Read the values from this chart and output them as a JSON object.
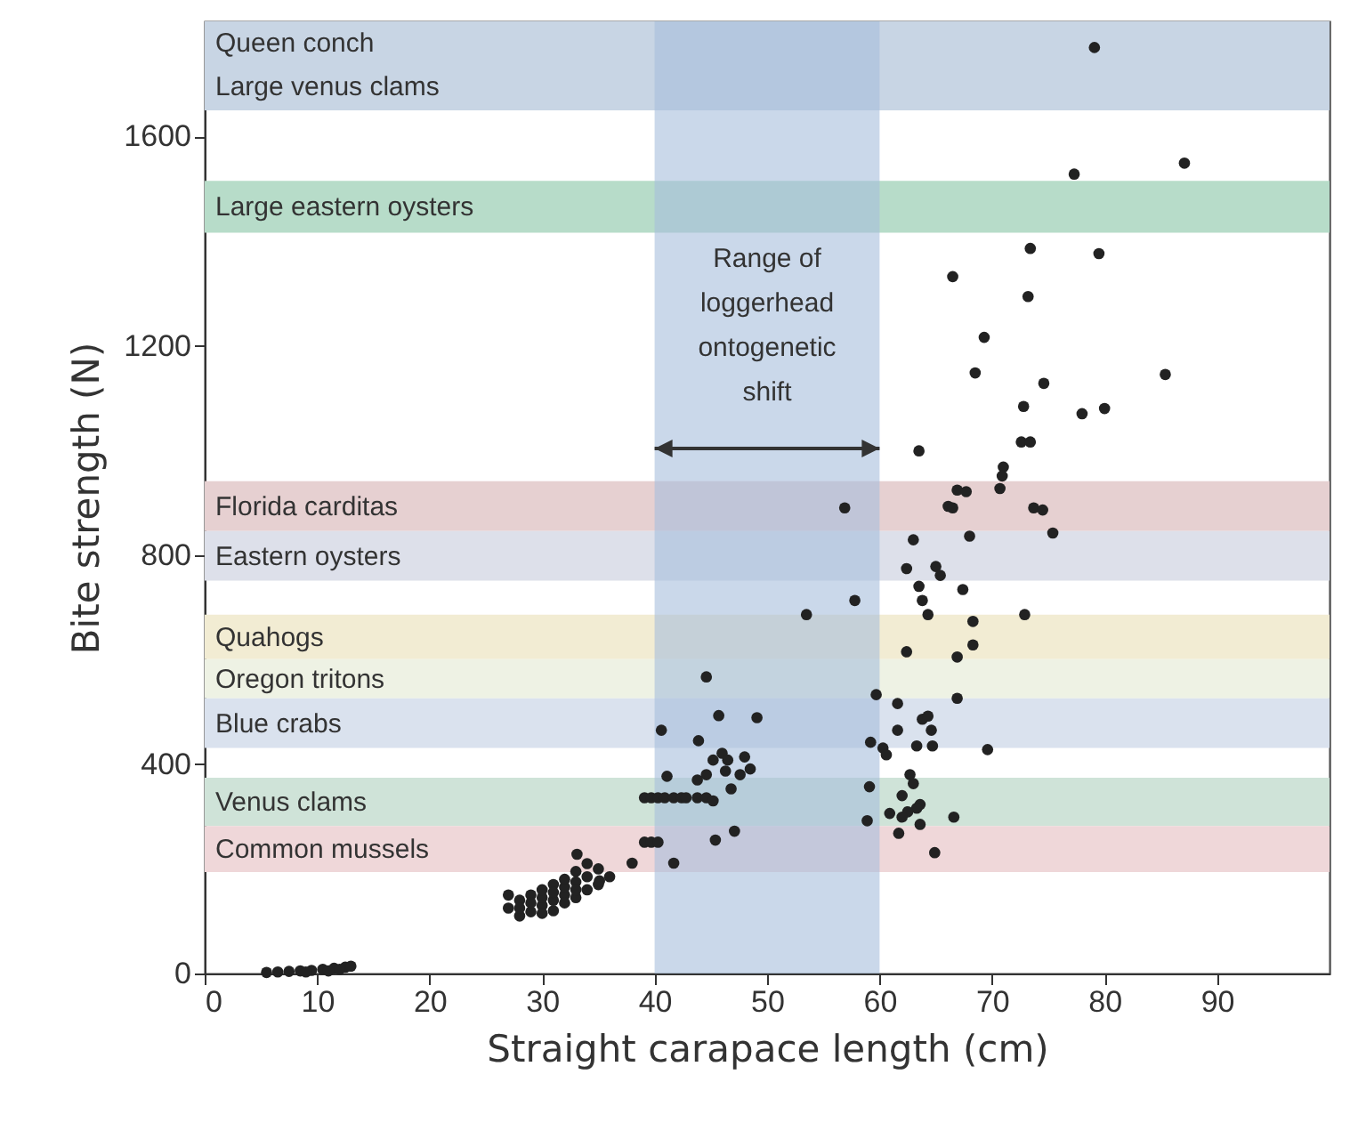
{
  "chart_data": {
    "type": "scatter",
    "xlabel": "Straight carapace length (cm)",
    "ylabel": "Bite strength (N)",
    "xlim": [
      0,
      100
    ],
    "ylim": [
      0,
      1820
    ],
    "xticks": [
      0,
      10,
      20,
      30,
      40,
      50,
      60,
      70,
      80,
      90
    ],
    "yticks": [
      0,
      400,
      800,
      1200,
      1600
    ],
    "grid": false,
    "marker": "circle",
    "bands": [
      {
        "axis": "y",
        "from": 1740,
        "to": 1820,
        "label": "Queen conch",
        "color": "#c8d5e4"
      },
      {
        "axis": "y",
        "from": 1650,
        "to": 1740,
        "label": "Large venus clams",
        "color": "#c8d5e4"
      },
      {
        "axis": "y",
        "from": 1416,
        "to": 1515,
        "label": "Large eastern oysters",
        "color": "#b7dcc9"
      },
      {
        "axis": "y",
        "from": 846,
        "to": 941,
        "label": "Florida carditas",
        "color": "#e6d0d1"
      },
      {
        "axis": "y",
        "from": 751,
        "to": 846,
        "label": "Eastern oysters",
        "color": "#dde0ea"
      },
      {
        "axis": "y",
        "from": 601,
        "to": 686,
        "label": "Quahogs",
        "color": "#f2ecd3"
      },
      {
        "axis": "y",
        "from": 526,
        "to": 601,
        "label": "Oregon tritons",
        "color": "#eef2e4"
      },
      {
        "axis": "y",
        "from": 431,
        "to": 526,
        "label": "Blue crabs",
        "color": "#dae2ee"
      },
      {
        "axis": "y",
        "from": 282,
        "to": 374,
        "label": "Venus clams",
        "color": "#cfe3d8"
      },
      {
        "axis": "y",
        "from": 194,
        "to": 282,
        "label": "Common mussels",
        "color": "#efd7d9"
      },
      {
        "axis": "x",
        "from": 40,
        "to": 60,
        "label": "Range of loggerhead ontogenetic shift",
        "color": "#a7bedc"
      }
    ],
    "series": [
      {
        "color": "#222222",
        "x": [
          79.1,
          87.1,
          77.3,
          73.4,
          79.5,
          66.5,
          73.2,
          69.3,
          68.5,
          85.4,
          74.6,
          72.8,
          78.0,
          80.0,
          63.5,
          72.6,
          73.4,
          71.0,
          70.9,
          70.7,
          66.9,
          67.7,
          56.9,
          66.1,
          66.5,
          73.7,
          74.5,
          75.4,
          63.0,
          68.0,
          62.4,
          65.0,
          65.4,
          63.5,
          67.4,
          57.8,
          63.8,
          64.3,
          68.3,
          72.9,
          68.3,
          62.4,
          66.9,
          59.7,
          61.6,
          66.9,
          63.8,
          64.3,
          61.6,
          64.6,
          59.2,
          60.3,
          60.6,
          63.3,
          64.7,
          69.6,
          62.7,
          63.0,
          59.1,
          62.0,
          63.6,
          63.3,
          62.5,
          62.0,
          60.9,
          66.6,
          58.9,
          63.6,
          61.7,
          64.9,
          53.5,
          44.6,
          45.7,
          49.1,
          40.6,
          43.9,
          46.0,
          46.5,
          48.0,
          48.5,
          45.2,
          46.3,
          47.6,
          44.6,
          43.8,
          46.8,
          41.1,
          39.1,
          39.7,
          40.3,
          40.9,
          41.7,
          42.4,
          42.8,
          43.8,
          44.6,
          45.2,
          39.1,
          39.7,
          40.3,
          45.4,
          47.1,
          38.0,
          41.7,
          28,
          27,
          28,
          29,
          29,
          30,
          30,
          30,
          31,
          31,
          31,
          32,
          32,
          32,
          33,
          33,
          33,
          34,
          34,
          34,
          35,
          35,
          36,
          27,
          29,
          31,
          33,
          32,
          30,
          28,
          33.1,
          35.1,
          5.5,
          6.5,
          7.5,
          8.5,
          9.5,
          10.5,
          11.5,
          12.5,
          13,
          9,
          11,
          12
        ],
        "values": [
          1770,
          1549,
          1528,
          1386,
          1376,
          1332,
          1294,
          1216,
          1148,
          1145,
          1128,
          1084,
          1070,
          1080,
          999,
          1016,
          1016,
          968,
          951,
          927,
          924,
          921,
          890,
          893,
          890,
          890,
          886,
          842,
          829,
          836,
          774,
          778,
          761,
          740,
          734,
          713,
          713,
          686,
          673,
          686,
          628,
          615,
          605,
          533,
          516,
          526,
          486,
          492,
          465,
          465,
          442,
          431,
          418,
          435,
          435,
          428,
          380,
          363,
          357,
          340,
          323,
          316,
          309,
          299,
          306,
          299,
          292,
          285,
          268,
          231,
          686,
          567,
          493,
          489,
          465,
          445,
          421,
          408,
          414,
          391,
          408,
          387,
          380,
          380,
          370,
          353,
          377,
          336,
          336,
          336,
          336,
          336,
          336,
          336,
          336,
          336,
          330,
          251,
          251,
          251,
          255,
          272,
          211,
          211,
          110,
          125,
          140,
          118,
          150,
          130,
          145,
          160,
          120,
          140,
          170,
          150,
          165,
          180,
          145,
          175,
          195,
          160,
          185,
          210,
          170,
          200,
          185,
          150,
          135,
          155,
          160,
          135,
          115,
          125,
          228,
          177,
          2,
          3,
          4,
          5,
          6,
          8,
          10,
          12,
          14,
          3,
          5,
          8
        ]
      }
    ]
  }
}
